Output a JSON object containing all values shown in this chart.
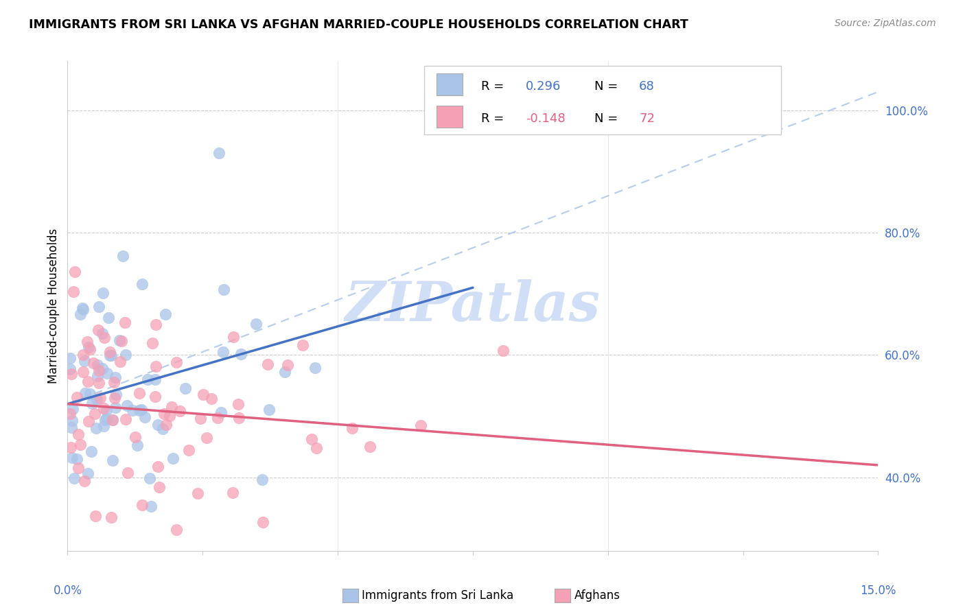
{
  "title": "IMMIGRANTS FROM SRI LANKA VS AFGHAN MARRIED-COUPLE HOUSEHOLDS CORRELATION CHART",
  "source": "Source: ZipAtlas.com",
  "ylabel": "Married-couple Households",
  "ytick_vals": [
    0.4,
    0.6,
    0.8,
    1.0
  ],
  "ytick_labels": [
    "40.0%",
    "60.0%",
    "80.0%",
    "100.0%"
  ],
  "xmin": 0.0,
  "xmax": 0.15,
  "ymin": 0.28,
  "ymax": 1.08,
  "color_blue": "#aac4e8",
  "color_pink": "#f5a0b5",
  "line_blue": "#4472c4",
  "line_pink": "#e06080",
  "line_dashed_color": "#aac4e8",
  "tick_color": "#4472c4",
  "watermark_color": "#d0dff5",
  "grid_color": "#cccccc",
  "spine_color": "#cccccc"
}
